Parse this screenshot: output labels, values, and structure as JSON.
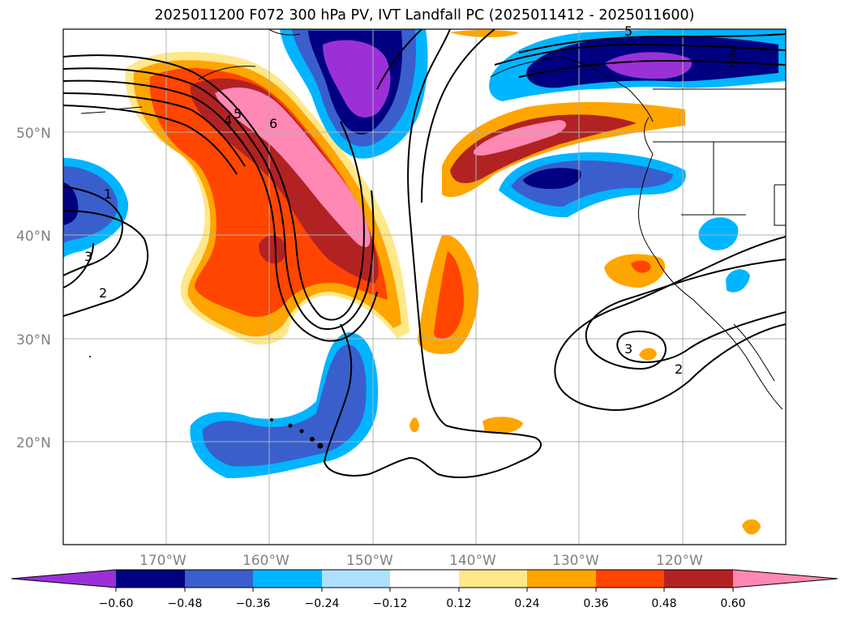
{
  "title": "2025011200 F072 300 hPa PV, IVT Landfall PC (2025011412 - 2025011600)",
  "map": {
    "lat_labels": [
      "50°N",
      "40°N",
      "30°N",
      "20°N"
    ],
    "lon_labels": [
      "170°W",
      "160°W",
      "150°W",
      "140°W",
      "130°W",
      "120°W"
    ]
  },
  "contour_labels": [
    "5",
    "4",
    "6",
    "1",
    "3",
    "2",
    "2",
    "1",
    "5",
    "3",
    "2"
  ],
  "colorbar": {
    "ticks": [
      "−0.60",
      "−0.48",
      "−0.36",
      "−0.24",
      "−0.12",
      "0.12",
      "0.24",
      "0.36",
      "0.48",
      "0.60"
    ],
    "colors": [
      "#9b30d9",
      "#000080",
      "#3a5fcd",
      "#00b5ff",
      "#aee1ff",
      "#ffffff",
      "#ffe88a",
      "#ffa500",
      "#ff4500",
      "#b22222",
      "#ff88b4"
    ]
  }
}
